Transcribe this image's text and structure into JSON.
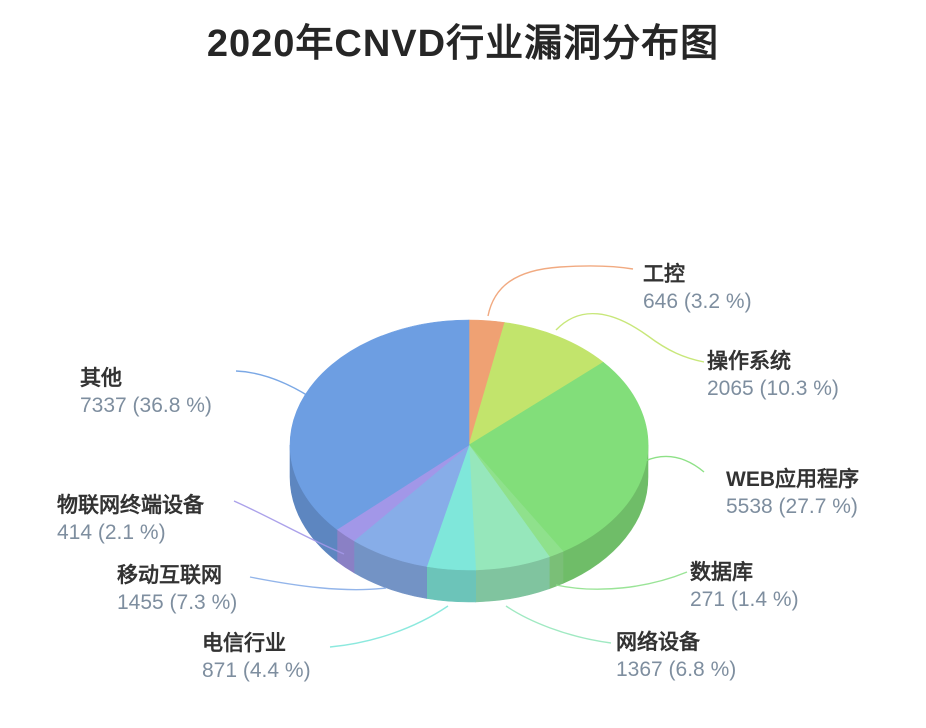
{
  "title": "2020年CNVD行业漏洞分布图",
  "chart_data": {
    "type": "pie",
    "style": "3d",
    "title": "2020年CNVD行业漏洞分布图",
    "start_angle_deg": 0,
    "direction": "clockwise",
    "legend": "none",
    "label_format": "name above, value (percent %) below, connected by colored leader line",
    "segments": [
      {
        "label": "工控",
        "value": 646,
        "pct": 3.2,
        "display": "646 (3.2 %)",
        "color": "#EFA173"
      },
      {
        "label": "操作系统",
        "value": 2065,
        "pct": 10.3,
        "display": "2065 (10.3 %)",
        "color": "#C2E46C"
      },
      {
        "label": "WEB应用程序",
        "value": 5538,
        "pct": 27.7,
        "display": "5538 (27.7 %)",
        "color": "#82DE7A"
      },
      {
        "label": "数据库",
        "value": 271,
        "pct": 1.4,
        "display": "271 (1.4 %)",
        "color": "#8FE18C"
      },
      {
        "label": "网络设备",
        "value": 1367,
        "pct": 6.8,
        "display": "1367 (6.8 %)",
        "color": "#96E7BB"
      },
      {
        "label": "电信行业",
        "value": 871,
        "pct": 4.4,
        "display": "871 (4.4 %)",
        "color": "#7FE7DA"
      },
      {
        "label": "移动互联网",
        "value": 1455,
        "pct": 7.3,
        "display": "1455 (7.3 %)",
        "color": "#87ADE8"
      },
      {
        "label": "物联网终端设备",
        "value": 414,
        "pct": 2.1,
        "display": "414 (2.1 %)",
        "color": "#A297E8"
      },
      {
        "label": "其他",
        "value": 7337,
        "pct": 36.8,
        "display": "7337 (36.8 %)",
        "color": "#6D9EE2"
      }
    ]
  }
}
